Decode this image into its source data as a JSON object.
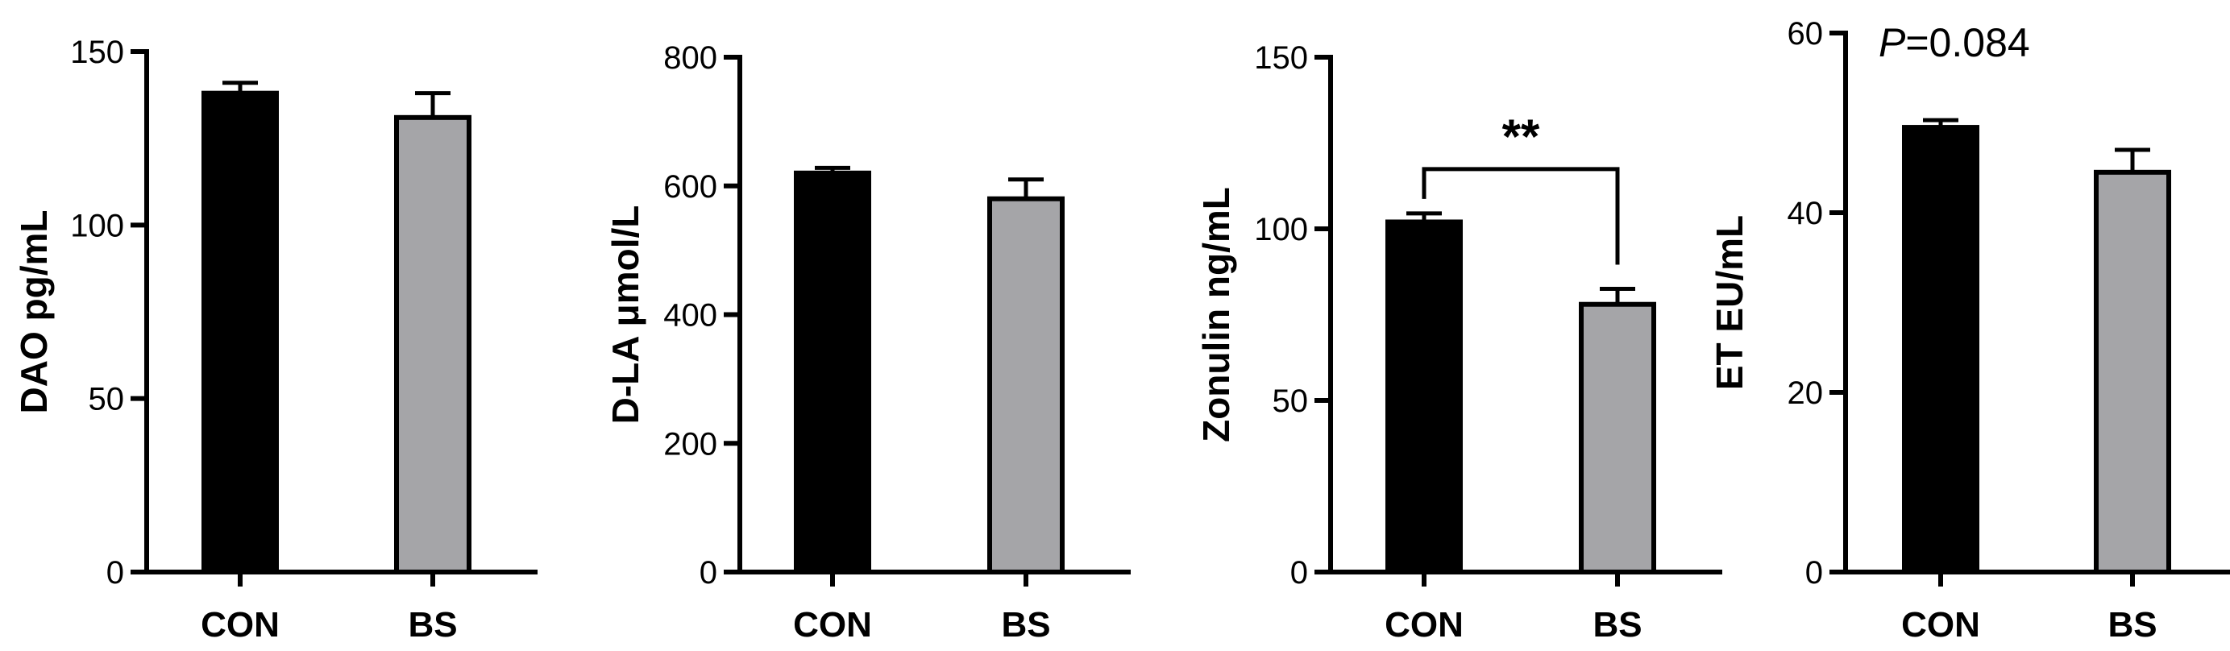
{
  "chart_data": [
    {
      "type": "bar",
      "categories": [
        "CON",
        "BS"
      ],
      "values": [
        138,
        131
      ],
      "errors": [
        3,
        7
      ],
      "ylabel": "DAO pg/mL",
      "ylim": [
        0,
        150
      ],
      "yticks": [
        0,
        50,
        100,
        150
      ],
      "bar_colors": [
        "#000000",
        "#a5a5a8"
      ],
      "annotation": ""
    },
    {
      "type": "bar",
      "categories": [
        "CON",
        "BS"
      ],
      "values": [
        620,
        580
      ],
      "errors": [
        8,
        30
      ],
      "ylabel": "D-LA μmol/L",
      "ylim": [
        0,
        800
      ],
      "yticks": [
        0,
        200,
        400,
        600,
        800
      ],
      "bar_colors": [
        "#000000",
        "#a5a5a8"
      ],
      "annotation": ""
    },
    {
      "type": "bar",
      "categories": [
        "CON",
        "BS"
      ],
      "values": [
        102,
        78
      ],
      "errors": [
        2.5,
        4.5
      ],
      "ylabel": "Zonulin ng/mL",
      "ylim": [
        0,
        150
      ],
      "yticks": [
        0,
        50,
        100,
        150
      ],
      "bar_colors": [
        "#000000",
        "#a5a5a8"
      ],
      "annotation": "**"
    },
    {
      "type": "bar",
      "categories": [
        "CON",
        "BS"
      ],
      "values": [
        49.5,
        44.5
      ],
      "errors": [
        0.8,
        2.5
      ],
      "ylabel": "ET EU/mL",
      "ylim": [
        0,
        60
      ],
      "yticks": [
        0,
        20,
        40,
        60
      ],
      "bar_colors": [
        "#000000",
        "#a5a5a8"
      ],
      "annotation": "",
      "p_prefix": "P",
      "p_value_text": "=0.084"
    }
  ]
}
